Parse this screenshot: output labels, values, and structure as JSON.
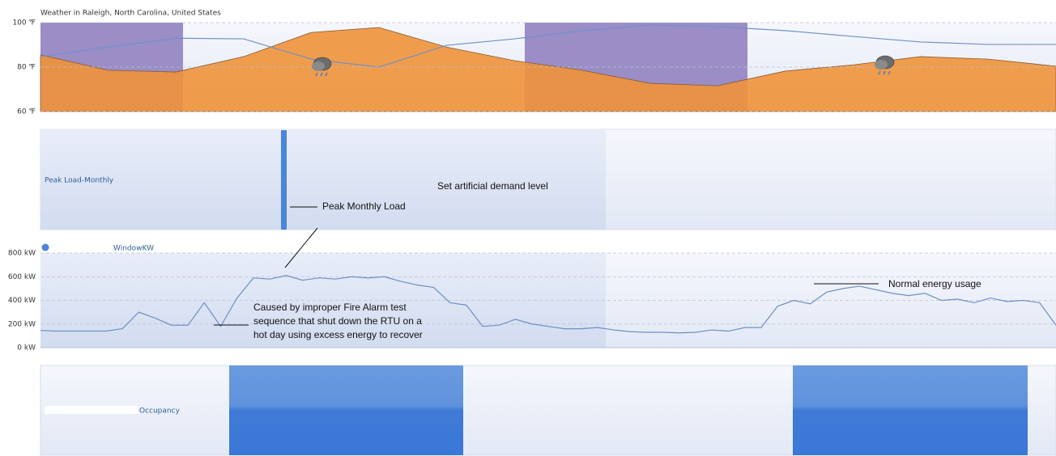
{
  "chart_data": [
    {
      "type": "area",
      "title": "Weather in Raleigh, North Carolina, United States",
      "categories": [
        null,
        null,
        null,
        null,
        null,
        null,
        null,
        null,
        null,
        null,
        null,
        null,
        null,
        null,
        null,
        null
      ],
      "series": [
        {
          "color": "#f0923a",
          "area": true,
          "values": [
            85.5,
            78.6,
            77.8,
            84.7,
            95.6,
            97.8,
            89,
            82.9,
            78.6,
            72.7,
            71.6,
            78.2,
            81,
            84.7,
            83.6,
            80.4
          ]
        },
        {
          "color": "#7390c8",
          "area": false,
          "values": [
            84.7,
            89,
            93,
            92.7,
            83.6,
            80,
            89.8,
            92.7,
            96.4,
            98.9,
            98.2,
            96.4,
            93.8,
            91.3,
            90.2,
            90.2
          ]
        }
      ],
      "ylim": [
        60,
        100
      ],
      "yticks": [
        {
          "value": 100,
          "label": "100 ℉"
        },
        {
          "value": 80,
          "label": "80 ℉"
        },
        {
          "value": 60,
          "label": "60 ℉"
        }
      ],
      "grid": true
    },
    {
      "type": "line",
      "legend": "WindowKW",
      "color": "#6d8fc6",
      "categories": [
        null,
        null,
        null,
        null,
        null,
        null,
        null,
        null,
        null,
        null,
        null,
        null,
        null,
        null,
        null,
        null,
        null,
        null,
        null,
        null,
        null,
        null,
        null,
        null,
        null,
        null,
        null,
        null,
        null,
        null,
        null,
        null,
        null,
        null,
        null,
        null,
        null,
        null,
        null,
        null,
        null,
        null,
        null,
        null,
        null,
        null,
        null,
        null,
        null,
        null,
        null,
        null,
        null,
        null,
        null,
        null,
        null,
        null,
        null,
        null,
        null,
        null,
        null
      ],
      "values": [
        145,
        140,
        140,
        140,
        140,
        160,
        300,
        250,
        190,
        190,
        380,
        180,
        420,
        590,
        580,
        610,
        570,
        590,
        580,
        600,
        590,
        600,
        560,
        530,
        510,
        380,
        360,
        180,
        190,
        240,
        200,
        180,
        160,
        160,
        170,
        150,
        135,
        130,
        130,
        125,
        130,
        150,
        140,
        170,
        170,
        350,
        400,
        370,
        470,
        500,
        520,
        490,
        460,
        440,
        460,
        400,
        410,
        380,
        420,
        390,
        400,
        380,
        190
      ],
      "ylim": [
        0,
        800
      ],
      "yticks": [
        {
          "value": 800,
          "label": "800 kW"
        },
        {
          "value": 600,
          "label": "600 kW"
        },
        {
          "value": 400,
          "label": "400 kW"
        },
        {
          "value": 200,
          "label": "200 kW"
        },
        {
          "value": 0,
          "label": "0 kW"
        }
      ],
      "grid": true,
      "annotations": [
        {
          "lines": [
            "Caused by improper Fire Alarm test",
            "sequence that shut down the RTU on a",
            "hot day using excess energy to recover"
          ]
        },
        {
          "lines": [
            "Normal energy usage"
          ]
        }
      ]
    }
  ],
  "peak_load": {
    "label": "Peak Load-Monthly",
    "marker": "Peak Monthly Load",
    "note": "Set artificial demand level"
  },
  "occupancy": {
    "label": "Occupancy"
  }
}
